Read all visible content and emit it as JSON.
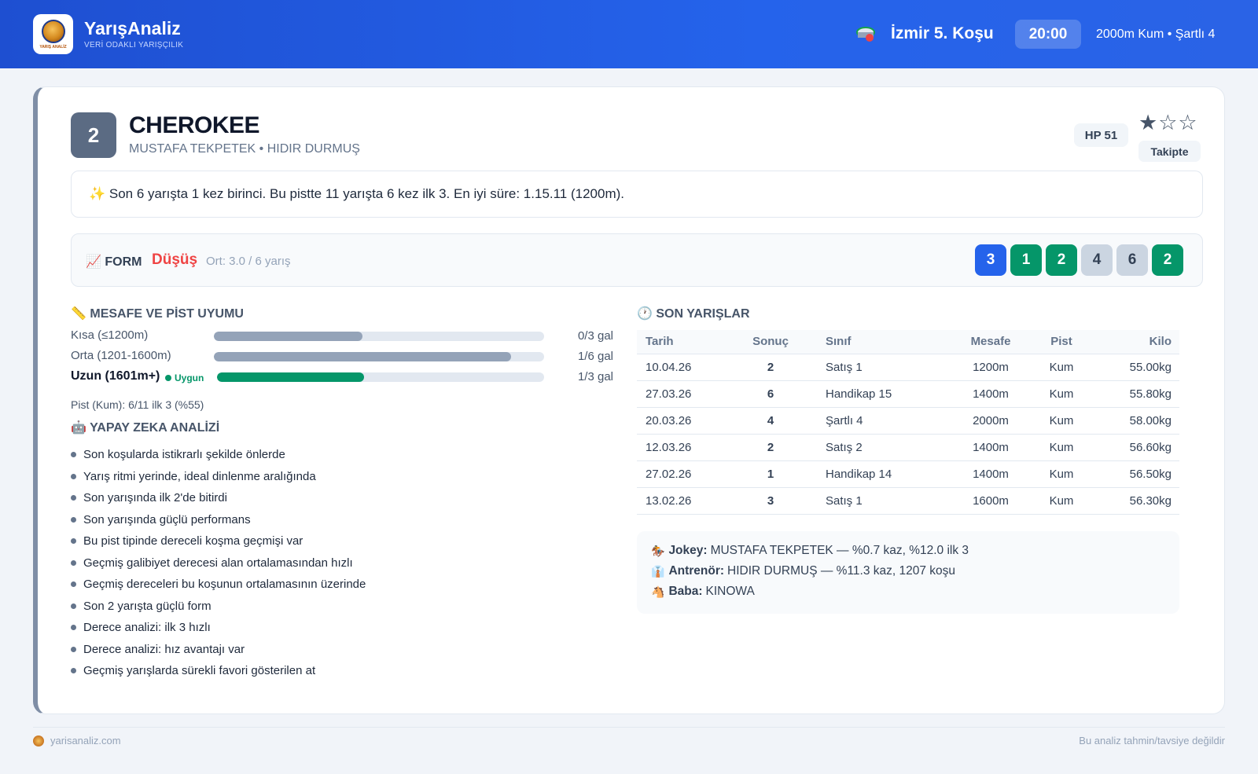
{
  "header": {
    "brand_name": "YarışAnaliz",
    "brand_tagline": "VERİ ODAKLI YARIŞÇILIK",
    "logo_text": "YARIŞ ANALİZ",
    "race_title": "İzmir 5. Koşu",
    "race_time": "20:00",
    "race_meta": "2000m Kum • Şartlı 4"
  },
  "horse": {
    "number": "2",
    "name": "CHEROKEE",
    "subtitle": "MUSTAFA TEKPETEK • HIDIR DURMUŞ",
    "hp": "HP 51",
    "stars": "★☆☆",
    "rating_filled": 1,
    "rating_max": 3,
    "follow_label": "Takipte"
  },
  "summary": "✨ Son 6 yarışta 1 kez birinci. Bu pistte 11 yarışta 6 kez ilk 3. En iyi süre: 1.15.11 (1200m).",
  "form": {
    "label": "📈 FORM",
    "trend": "Düşüş",
    "average": "Ort: 3.0 / 6 yarış",
    "chips": [
      {
        "value": "3",
        "color": "#2563eb"
      },
      {
        "value": "1",
        "color": "#059669"
      },
      {
        "value": "2",
        "color": "#059669"
      },
      {
        "value": "4",
        "color": "#cbd5e1"
      },
      {
        "value": "6",
        "color": "#cbd5e1"
      },
      {
        "value": "2",
        "color": "#059669"
      }
    ]
  },
  "distance": {
    "title": "📏 MESAFE VE PİST UYUMU",
    "rows": [
      {
        "label": "Kısa (≤1200m)",
        "value": "0/3 gal",
        "fill": 0.45
      },
      {
        "label": "Orta (1201-1600m)",
        "value": "1/6 gal",
        "fill": 0.9
      },
      {
        "label": "Uzun (1601m+)",
        "value": "1/3 gal",
        "fill": 0.45,
        "badge": "Uygun"
      }
    ],
    "pist": "Pist (Kum): 6/11 ilk 3 (%55)"
  },
  "ai": {
    "title": "🤖 YAPAY ZEKA ANALİZİ",
    "items": [
      "Son koşularda istikrarlı şekilde önlerde",
      "Yarış ritmi yerinde, ideal dinlenme aralığında",
      "Son yarışında ilk 2'de bitirdi",
      "Son yarışında güçlü performans",
      "Bu pist tipinde dereceli koşma geçmişi var",
      "Geçmiş galibiyet derecesi alan ortalamasından hızlı",
      "Geçmiş dereceleri bu koşunun ortalamasının üzerinde",
      "Son 2 yarışta güçlü form",
      "Derece analizi: ilk 3 hızlı",
      "Derece analizi: hız avantajı var",
      "Geçmiş yarışlarda sürekli favori gösterilen at"
    ]
  },
  "races": {
    "title": "🕐 SON YARIŞLAR",
    "columns": [
      "Tarih",
      "Sonuç",
      "Sınıf",
      "Mesafe",
      "Pist",
      "Kilo"
    ],
    "rows": [
      {
        "date": "10.04.26",
        "result": "2",
        "cls": "Satış 1",
        "dist": "1200m",
        "pist": "Kum",
        "kilo": "55.00kg",
        "tone": "orange"
      },
      {
        "date": "27.03.26",
        "result": "6",
        "cls": "Handikap 15",
        "dist": "1400m",
        "pist": "Kum",
        "kilo": "55.80kg",
        "tone": "gray"
      },
      {
        "date": "20.03.26",
        "result": "4",
        "cls": "Şartlı 4",
        "dist": "2000m",
        "pist": "Kum",
        "kilo": "58.00kg",
        "tone": "gray"
      },
      {
        "date": "12.03.26",
        "result": "2",
        "cls": "Satış 2",
        "dist": "1400m",
        "pist": "Kum",
        "kilo": "56.60kg",
        "tone": "orange"
      },
      {
        "date": "27.02.26",
        "result": "1",
        "cls": "Handikap 14",
        "dist": "1400m",
        "pist": "Kum",
        "kilo": "56.50kg",
        "tone": "green"
      },
      {
        "date": "13.02.26",
        "result": "3",
        "cls": "Satış 1",
        "dist": "1600m",
        "pist": "Kum",
        "kilo": "56.30kg",
        "tone": "orange"
      }
    ]
  },
  "info": {
    "jockey_label": "Jokey:",
    "jockey_value": "MUSTAFA TEKPETEK — %0.7 kaz, %12.0 ilk 3",
    "trainer_label": "Antrenör:",
    "trainer_value": "HIDIR DURMUŞ — %11.3 kaz, 1207 koşu",
    "sire_label": "Baba:",
    "sire_value": "KINOWA"
  },
  "footer": {
    "site": "yarisanaliz.com",
    "disclaimer": "Bu analiz tahmin/tavsiye değildir"
  }
}
